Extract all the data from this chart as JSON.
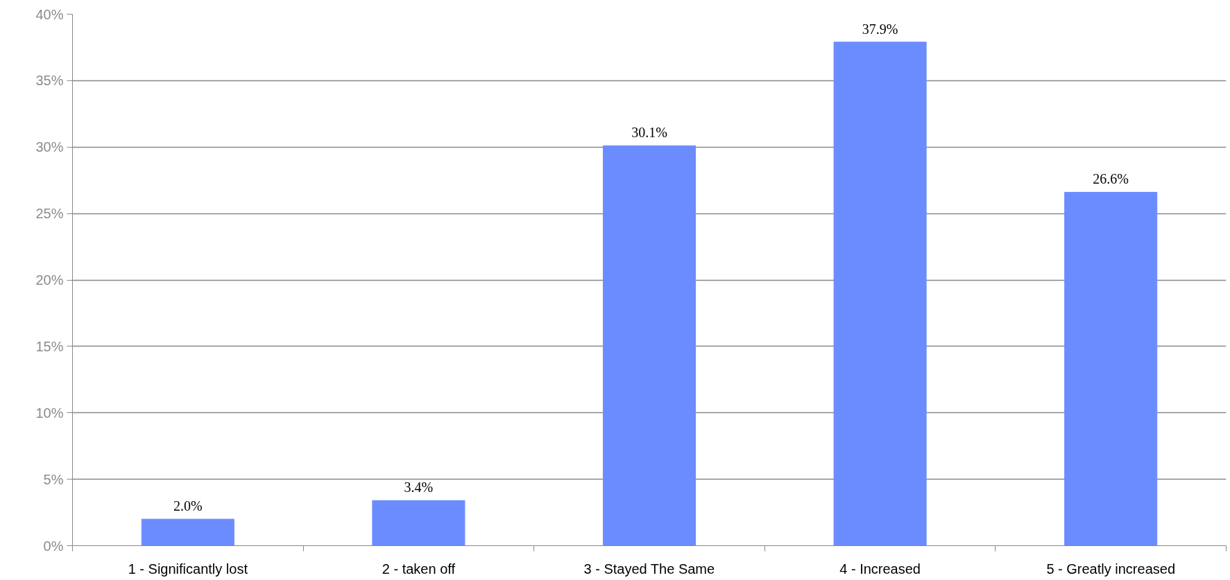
{
  "chart_data": {
    "type": "bar",
    "categories": [
      "1 - Significantly lost",
      "2 - taken off",
      "3 - Stayed The Same",
      "4 - Increased",
      "5 - Greatly increased"
    ],
    "values": [
      2.0,
      3.4,
      30.1,
      37.9,
      26.6
    ],
    "value_labels": [
      "2.0%",
      "3.4%",
      "30.1%",
      "37.9%",
      "26.6%"
    ],
    "color": "#6b8cff",
    "ylim": [
      0,
      40
    ],
    "yticks": [
      {
        "value": 0,
        "label": "0%"
      },
      {
        "value": 5,
        "label": "5%"
      },
      {
        "value": 10,
        "label": "10%"
      },
      {
        "value": 15,
        "label": "15%"
      },
      {
        "value": 20,
        "label": "20%"
      },
      {
        "value": 25,
        "label": "25%"
      },
      {
        "value": 30,
        "label": "30%"
      },
      {
        "value": 35,
        "label": "35%"
      },
      {
        "value": 40,
        "label": "40%"
      }
    ],
    "grid": "y"
  }
}
